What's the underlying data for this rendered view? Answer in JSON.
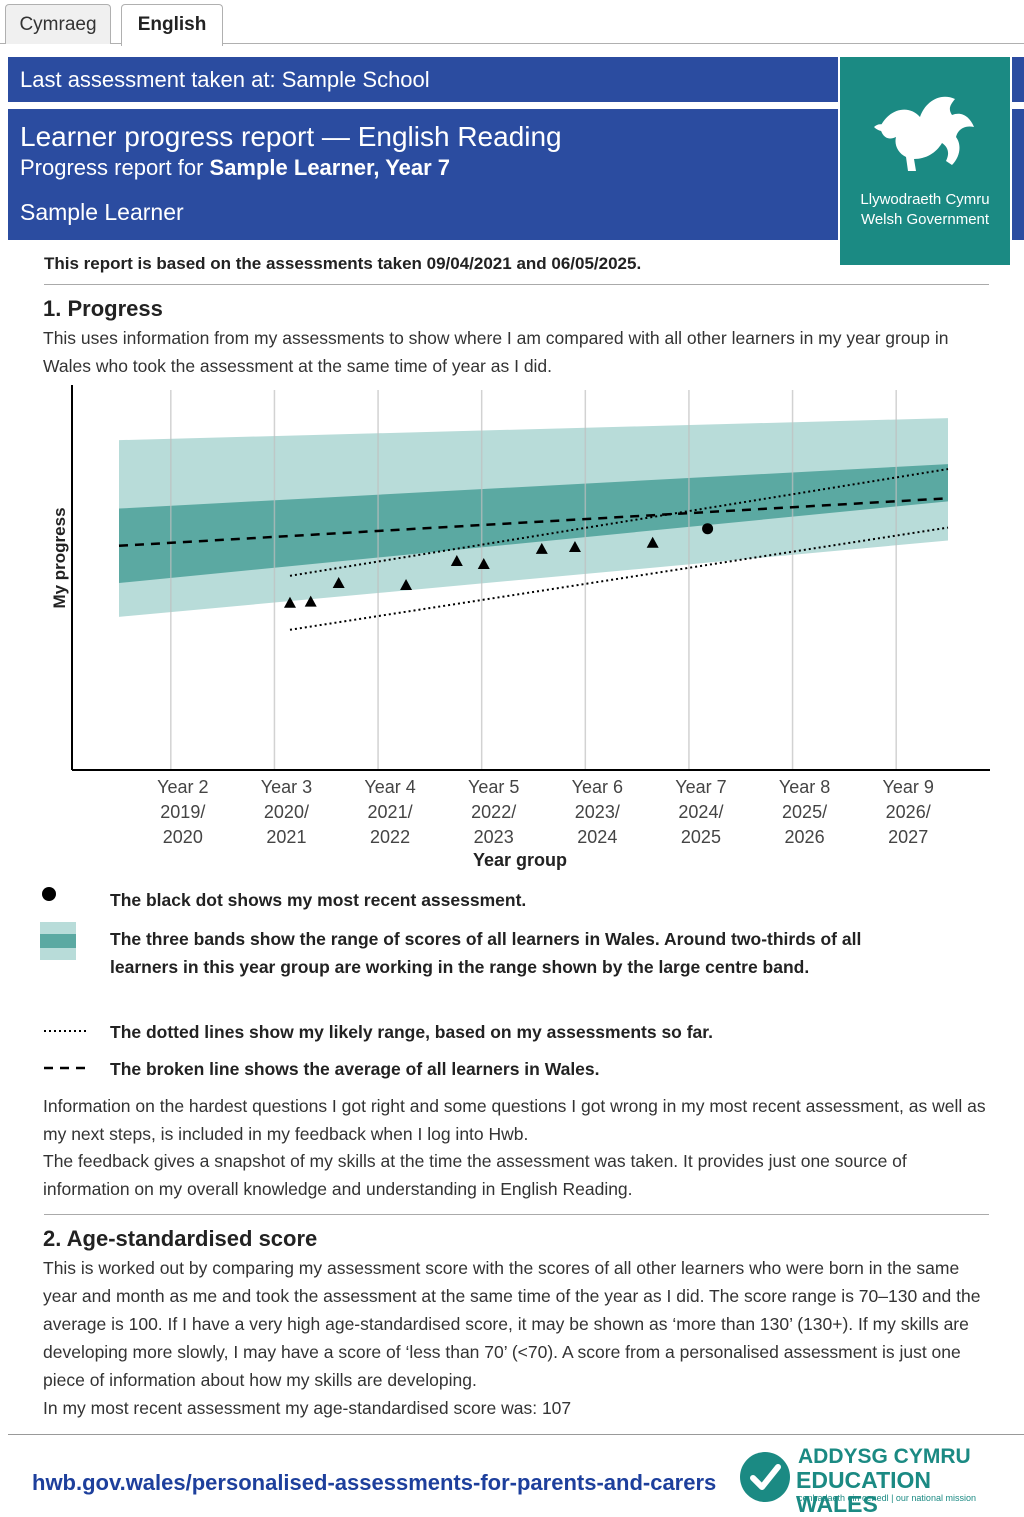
{
  "tabs": [
    {
      "label": "Cymraeg",
      "active": false
    },
    {
      "label": "English",
      "active": true
    }
  ],
  "header": {
    "last_assessment": "Last assessment taken at: Sample School",
    "title": "Learner progress report — English Reading",
    "subtitle_prefix": "Progress report for ",
    "subtitle_bold": "Sample Learner, Year 7",
    "learner_name": "Sample Learner"
  },
  "gov_logo": {
    "line1": "Llywodraeth Cymru",
    "line2": "Welsh Government",
    "color": "#1b8a83"
  },
  "basis": "This report is based on the assessments taken 09/04/2021 and 06/05/2025.",
  "section1": {
    "heading": "1. Progress",
    "intro": "This uses information from my assessments to show where I am compared with all other learners in my year group in Wales who took the assessment at the same time of year as I did."
  },
  "chart_data": {
    "type": "line",
    "ylabel": "My progress",
    "xlabel": "Year group",
    "categories": [
      {
        "year": "Year 2",
        "span1": "2019/",
        "span2": "2020"
      },
      {
        "year": "Year 3",
        "span1": "2020/",
        "span2": "2021"
      },
      {
        "year": "Year 4",
        "span1": "2021/",
        "span2": "2022"
      },
      {
        "year": "Year 5",
        "span1": "2022/",
        "span2": "2023"
      },
      {
        "year": "Year 6",
        "span1": "2023/",
        "span2": "2024"
      },
      {
        "year": "Year 7",
        "span1": "2024/",
        "span2": "2025"
      },
      {
        "year": "Year 8",
        "span1": "2025/",
        "span2": "2026"
      },
      {
        "year": "Year 9",
        "span1": "2026/",
        "span2": "2027"
      }
    ],
    "xlim": [
      0,
      8
    ],
    "ylim": [
      0,
      100
    ],
    "outer_band": {
      "start": [
        0,
        40.3,
        86.8
      ],
      "end": [
        8,
        60.4,
        92.6
      ],
      "color": "#b8dcd9"
    },
    "centre_band": {
      "start": [
        0,
        68.8,
        49.2
      ],
      "end": [
        8,
        80.5,
        70.7
      ],
      "color": "#5ba9a2"
    },
    "average_line": {
      "start": [
        0,
        59.0
      ],
      "end": [
        8,
        71.5
      ]
    },
    "likely_range_upper": {
      "start": [
        1.65,
        51.1
      ],
      "end": [
        8,
        79.2
      ]
    },
    "likely_range_lower": {
      "start": [
        1.65,
        36.9
      ],
      "end": [
        8,
        63.8
      ]
    },
    "assessments": [
      {
        "x": 1.65,
        "y": 44.0,
        "marker": "triangle"
      },
      {
        "x": 1.85,
        "y": 44.3,
        "marker": "triangle"
      },
      {
        "x": 2.12,
        "y": 49.2,
        "marker": "triangle"
      },
      {
        "x": 2.77,
        "y": 48.7,
        "marker": "triangle"
      },
      {
        "x": 3.26,
        "y": 55.0,
        "marker": "triangle"
      },
      {
        "x": 3.52,
        "y": 54.2,
        "marker": "triangle"
      },
      {
        "x": 4.08,
        "y": 58.2,
        "marker": "triangle"
      },
      {
        "x": 4.4,
        "y": 58.7,
        "marker": "triangle"
      },
      {
        "x": 5.15,
        "y": 59.8,
        "marker": "triangle"
      },
      {
        "x": 5.68,
        "y": 63.5,
        "marker": "dot"
      }
    ]
  },
  "legend": [
    {
      "symbol": "dot",
      "text": "The black dot shows my most recent assessment."
    },
    {
      "symbol": "bands",
      "text": "The three bands show the range of scores of all learners in Wales. Around two-thirds of all learners in this year group are working in the range shown by the large centre band."
    },
    {
      "symbol": "dotted",
      "text": "The dotted lines show my likely range, based on my assessments so far."
    },
    {
      "symbol": "dashed",
      "text": "The broken line shows the average of all learners in Wales."
    }
  ],
  "info1": "Information on the hardest questions I got right and some questions I got wrong in my most recent assessment, as well as my next steps, is included in my feedback when I log into Hwb.",
  "info2": "The feedback gives a snapshot of my skills at the time the assessment was taken. It provides just one source of information on my overall knowledge and understanding in English Reading.",
  "section2": {
    "heading": "2. Age-standardised score",
    "body": "This is worked out by comparing my assessment score with the scores of all other learners who were born in the same year and month as me and took the assessment at the same time of the year as I did. The score range is 70–130 and the average is 100. If I have a very high age-standardised score, it may be shown as ‘more than 130’ (130+). If my skills are developing more slowly, I may have a score of ‘less than 70’ (<70). A score from a personalised assessment is just one piece of information about how my skills are developing.",
    "score_line": "In my most recent assessment my age-standardised score was: 107"
  },
  "footer": {
    "link": "hwb.gov.wales/personalised-assessments-for-parents-and-carers",
    "brand_line1": "ADDYSG CYMRU",
    "brand_line2": "EDUCATION WALES",
    "tagline": "cenhadaeth ein cenedl | our national mission",
    "brand_color": "#1b8a83"
  }
}
